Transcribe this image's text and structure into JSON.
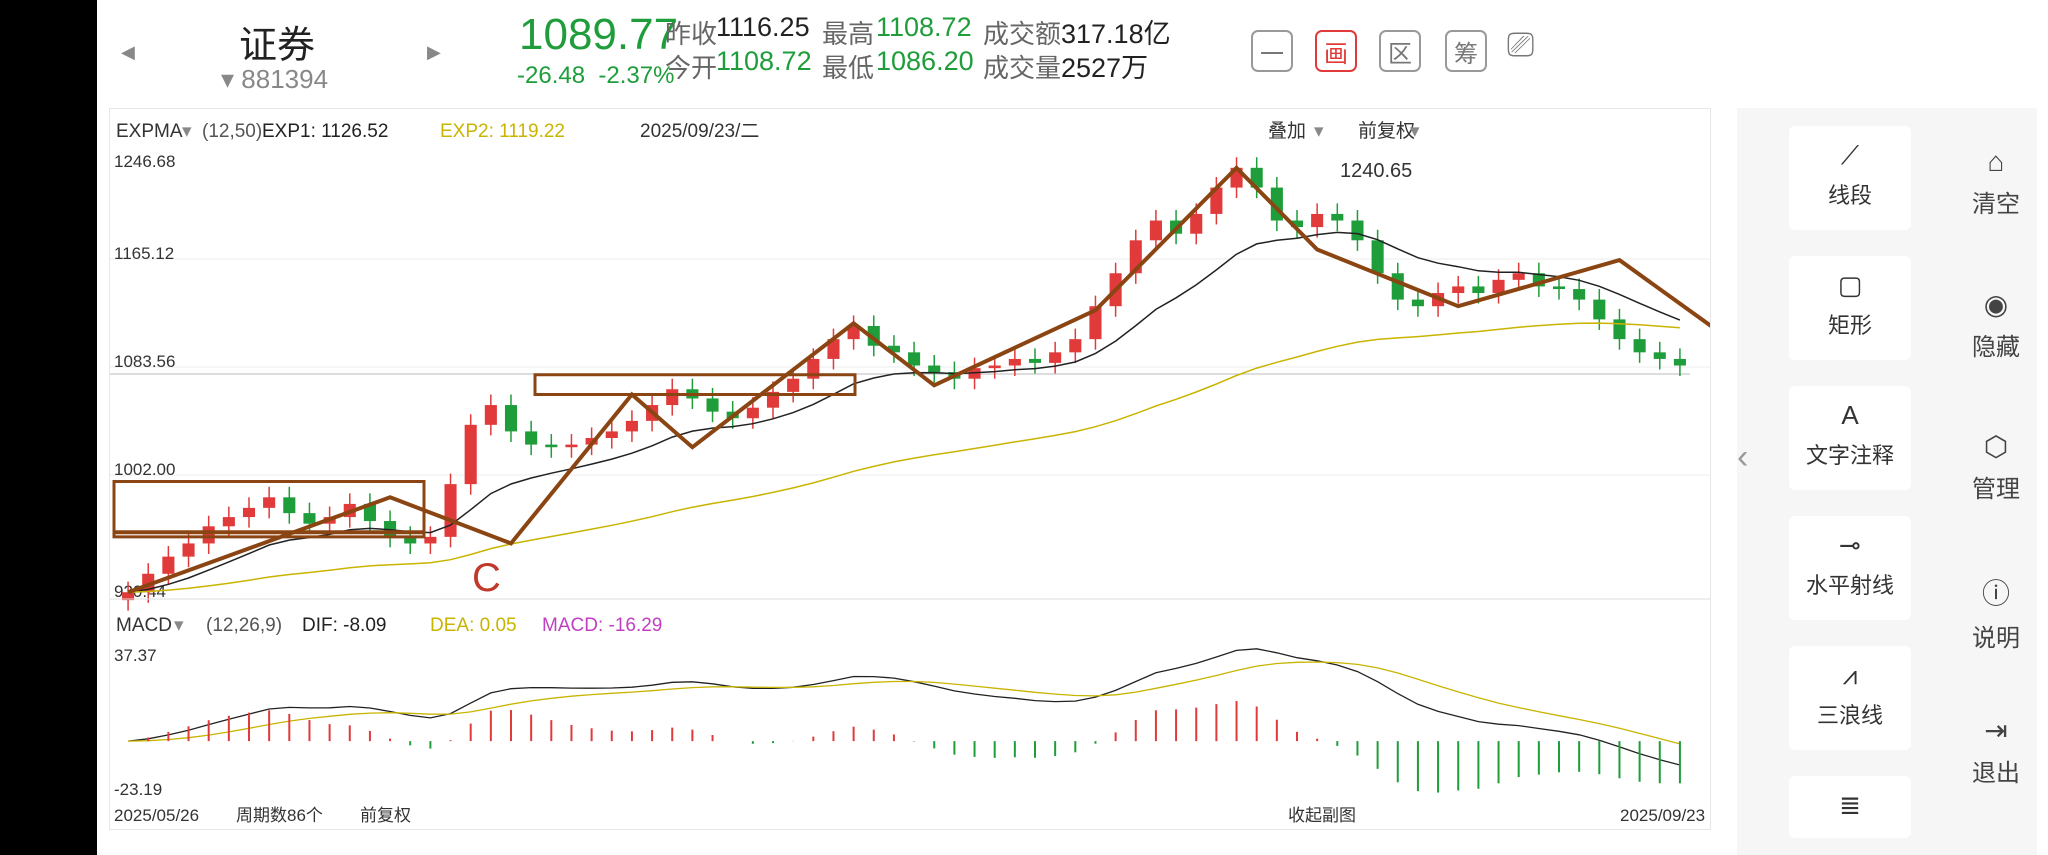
{
  "header": {
    "stock_name": "证券",
    "stock_code": "881394",
    "price": "1089.77",
    "change": "-26.48",
    "change_pct": "-2.37%",
    "stats": [
      {
        "label": "昨收",
        "value": "1116.25",
        "color": "#222222"
      },
      {
        "label": "今开",
        "value": "1108.72",
        "color": "#1f9d3a"
      },
      {
        "label": "最高",
        "value": "1108.72",
        "color": "#1f9d3a"
      },
      {
        "label": "最低",
        "value": "1086.20",
        "color": "#1f9d3a"
      },
      {
        "label": "成交额",
        "value": "317.18亿",
        "color": "#222222"
      },
      {
        "label": "成交量",
        "value": "2527万",
        "color": "#222222"
      }
    ],
    "top_buttons": [
      {
        "label": "一",
        "active": false
      },
      {
        "label": "画",
        "active": true
      },
      {
        "label": "区",
        "active": false
      },
      {
        "label": "筹",
        "active": false
      }
    ]
  },
  "main": {
    "indicator": "EXPMA",
    "params": "(12,50)",
    "exp1": "EXP1: 1126.52",
    "exp2": "EXP2: 1119.22",
    "date": "2025/09/23/二",
    "overlay": "叠加",
    "adjust": "前复权",
    "y_labels": [
      "1246.68",
      "1165.12",
      "1083.56",
      "1002.00",
      "920.44"
    ],
    "peak_label": "1240.65",
    "annotation": "C"
  },
  "macd": {
    "indicator": "MACD",
    "params": "(12,26,9)",
    "dif": "DIF: -8.09",
    "dea": "DEA: 0.05",
    "macd": "MACD: -16.29",
    "y_top": "37.37",
    "y_bottom": "-23.19"
  },
  "footer": {
    "start_date": "2025/05/26",
    "period": "周期数86个",
    "adjust": "前复权",
    "collapse": "收起副图",
    "end_date": "2025/09/23"
  },
  "tools": [
    {
      "label": "线段",
      "icon": "line-segment-icon"
    },
    {
      "label": "矩形",
      "icon": "rectangle-icon"
    },
    {
      "label": "文字注释",
      "icon": "text-annotation-icon"
    },
    {
      "label": "水平射线",
      "icon": "horizontal-ray-icon"
    },
    {
      "label": "三浪线",
      "icon": "three-wave-icon"
    }
  ],
  "side_actions": [
    {
      "label": "清空",
      "icon": "clear-icon"
    },
    {
      "label": "隐藏",
      "icon": "hide-eye-icon"
    },
    {
      "label": "管理",
      "icon": "manage-icon"
    },
    {
      "label": "说明",
      "icon": "help-icon"
    },
    {
      "label": "退出",
      "icon": "exit-icon"
    }
  ],
  "colors": {
    "up": "#e03a3a",
    "down": "#1f9d3a",
    "drawing": "#8b4513",
    "exp1": "#222222",
    "exp2": "#c9b400",
    "macd_line": "#c040c0"
  },
  "chart_data": {
    "type": "candlestick",
    "x_start": "2025/05/26",
    "x_end": "2025/09/23",
    "periods": 86,
    "ylim": [
      920.44,
      1246.68
    ],
    "y_ticks": [
      1246.68,
      1165.12,
      1083.56,
      1002.0,
      920.44
    ],
    "close_path": [
      918,
      932,
      945,
      955,
      968,
      975,
      982,
      990,
      978,
      970,
      975,
      985,
      972,
      960,
      955,
      960,
      1000,
      1045,
      1060,
      1040,
      1030,
      1028,
      1030,
      1035,
      1040,
      1048,
      1060,
      1072,
      1065,
      1055,
      1050,
      1058,
      1070,
      1080,
      1095,
      1110,
      1120,
      1105,
      1100,
      1090,
      1085,
      1080,
      1088,
      1090,
      1095,
      1092,
      1100,
      1110,
      1135,
      1160,
      1185,
      1200,
      1190,
      1205,
      1225,
      1240,
      1225,
      1200,
      1195,
      1205,
      1200,
      1185,
      1160,
      1140,
      1135,
      1145,
      1150,
      1145,
      1155,
      1160,
      1150,
      1148,
      1140,
      1125,
      1110,
      1100,
      1095,
      1090
    ]
  }
}
